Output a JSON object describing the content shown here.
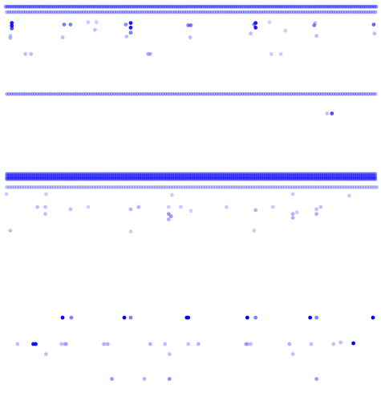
{
  "chart_data": {
    "type": "scatter",
    "title": "",
    "xlabel": "",
    "ylabel": "",
    "xlim": [
      0,
      100
    ],
    "ylim": [
      0,
      100
    ],
    "grid": false,
    "legend": "none",
    "axes_visible": false,
    "marker_color": "#0000ff",
    "bands": [
      {
        "y": 98.9,
        "start": 0.9,
        "end": 99.6,
        "step": 0.55,
        "alpha": 0.45,
        "rows": 1
      },
      {
        "y": 97.5,
        "start": 1.2,
        "end": 99.6,
        "step": 0.62,
        "alpha": 0.32,
        "rows": 1
      },
      {
        "y": 76.4,
        "start": 1.2,
        "end": 99.6,
        "step": 0.62,
        "alpha": 0.32,
        "rows": 1
      },
      {
        "y": 55.8,
        "start": 1.2,
        "end": 99.6,
        "step": 0.55,
        "alpha": 0.45,
        "rows": 3
      },
      {
        "y": 54.4,
        "start": 1.2,
        "end": 99.6,
        "step": 0.62,
        "alpha": 0.32,
        "rows": 1
      },
      {
        "y": 52.4,
        "start": 1.2,
        "end": 99.6,
        "step": 0.66,
        "alpha": 0.25,
        "rows": 1
      }
    ],
    "series": [
      {
        "values": [
          [
            2.5,
            94.7
          ],
          [
            2.5,
            94.0
          ],
          [
            2.5,
            93.3
          ],
          [
            2.1,
            91.4
          ],
          [
            2.1,
            90.8
          ],
          [
            16.4,
            94.3
          ],
          [
            18.1,
            94.3
          ],
          [
            16.0,
            91.0
          ],
          [
            22.8,
            94.9
          ],
          [
            25.0,
            94.9
          ],
          [
            32.8,
            94.3
          ],
          [
            34.1,
            94.7
          ],
          [
            34.1,
            93.5
          ],
          [
            34.1,
            92.2
          ],
          [
            24.6,
            92.9
          ],
          [
            33.0,
            91.2
          ],
          [
            49.4,
            94.1
          ],
          [
            50.1,
            94.1
          ],
          [
            49.9,
            91.0
          ],
          [
            66.9,
            94.3
          ],
          [
            67.3,
            94.7
          ],
          [
            67.3,
            93.5
          ],
          [
            66.0,
            92.0
          ],
          [
            71.0,
            94.9
          ],
          [
            75.2,
            92.7
          ],
          [
            82.9,
            94.1
          ],
          [
            83.1,
            94.7
          ],
          [
            83.5,
            91.4
          ],
          [
            98.7,
            94.3
          ],
          [
            98.9,
            92.0
          ],
          [
            6.1,
            86.7
          ],
          [
            7.6,
            86.7
          ],
          [
            38.7,
            86.7
          ],
          [
            39.3,
            86.7
          ],
          [
            71.5,
            86.7
          ],
          [
            74.0,
            86.7
          ],
          [
            86.3,
            71.4
          ],
          [
            87.6,
            71.4
          ],
          [
            1.1,
            50.6
          ],
          [
            11.6,
            50.6
          ],
          [
            45.1,
            50.4
          ],
          [
            77.2,
            50.6
          ],
          [
            92.2,
            50.2
          ],
          [
            9.3,
            47.3
          ],
          [
            11.4,
            47.3
          ],
          [
            11.4,
            45.5
          ],
          [
            18.1,
            46.7
          ],
          [
            22.8,
            47.3
          ],
          [
            34.1,
            46.7
          ],
          [
            36.2,
            47.3
          ],
          [
            44.2,
            47.3
          ],
          [
            44.2,
            45.5
          ],
          [
            44.8,
            44.9
          ],
          [
            44.2,
            44.1
          ],
          [
            47.4,
            47.3
          ],
          [
            50.1,
            46.3
          ],
          [
            59.6,
            47.3
          ],
          [
            67.3,
            46.5
          ],
          [
            71.9,
            47.3
          ],
          [
            77.2,
            45.5
          ],
          [
            77.2,
            44.5
          ],
          [
            78.3,
            45.9
          ],
          [
            83.5,
            46.7
          ],
          [
            84.6,
            47.3
          ],
          [
            83.5,
            45.5
          ],
          [
            2.1,
            41.2
          ],
          [
            34.1,
            41.0
          ],
          [
            66.9,
            41.2
          ],
          [
            4.0,
            12.0
          ],
          [
            9.0,
            12.0
          ],
          [
            17.0,
            12.0
          ],
          [
            27.0,
            12.0
          ],
          [
            28.0,
            12.0
          ],
          [
            39.3,
            12.0
          ],
          [
            52.1,
            12.0
          ],
          [
            65.1,
            12.0
          ],
          [
            76.3,
            12.0
          ],
          [
            88.0,
            12.0
          ],
          [
            89.9,
            12.4
          ],
          [
            11.6,
            9.4
          ],
          [
            44.4,
            9.4
          ],
          [
            77.2,
            9.4
          ],
          [
            93.3,
            12.2
          ],
          [
            29.1,
            3.0
          ],
          [
            37.7,
            3.0
          ],
          [
            44.4,
            3.0
          ],
          [
            83.5,
            3.0
          ],
          [
            16.0,
            18.8
          ],
          [
            18.3,
            18.8
          ],
          [
            32.4,
            18.8
          ],
          [
            34.1,
            18.8
          ],
          [
            49.0,
            18.8
          ],
          [
            49.4,
            18.8
          ],
          [
            65.1,
            18.8
          ],
          [
            67.3,
            18.8
          ],
          [
            81.8,
            18.8
          ],
          [
            83.5,
            18.8
          ],
          [
            98.5,
            18.8
          ],
          [
            8.2,
            12.0
          ],
          [
            8.8,
            12.0
          ],
          [
            15.7,
            12.0
          ],
          [
            16.6,
            12.0
          ],
          [
            43.2,
            12.0
          ],
          [
            49.4,
            12.0
          ],
          [
            64.7,
            12.0
          ],
          [
            66.0,
            12.0
          ],
          [
            82.1,
            12.0
          ]
        ],
        "alpha": [
          0.9,
          0.9,
          0.7,
          0.25,
          0.25,
          0.5,
          0.5,
          0.25,
          0.2,
          0.2,
          0.45,
          0.9,
          0.9,
          0.5,
          0.25,
          0.25,
          0.5,
          0.5,
          0.25,
          0.5,
          0.9,
          0.9,
          0.25,
          0.2,
          0.2,
          0.5,
          0.25,
          0.25,
          0.6,
          0.25,
          0.25,
          0.25,
          0.3,
          0.3,
          0.2,
          0.2,
          0.25,
          0.7,
          0.2,
          0.2,
          0.2,
          0.2,
          0.2,
          0.25,
          0.25,
          0.25,
          0.25,
          0.2,
          0.3,
          0.3,
          0.2,
          0.4,
          0.4,
          0.3,
          0.2,
          0.2,
          0.2,
          0.3,
          0.2,
          0.3,
          0.3,
          0.2,
          0.25,
          0.25,
          0.3,
          0.25,
          0.2,
          0.2,
          0.25,
          0.25,
          0.25,
          0.3,
          0.3,
          0.3,
          0.3,
          0.3,
          0.3,
          0.25,
          0.25,
          0.25,
          0.25,
          0.25,
          1.0,
          0.4,
          0.3,
          0.45,
          0.4,
          1.0,
          0.5,
          1.0,
          0.5,
          1.0,
          1.0,
          1.0,
          0.5,
          1.0,
          0.5,
          1.0,
          0.9,
          0.9,
          0.25,
          0.25,
          0.25,
          0.25,
          0.25,
          0.25,
          0.25
        ]
      }
    ]
  }
}
